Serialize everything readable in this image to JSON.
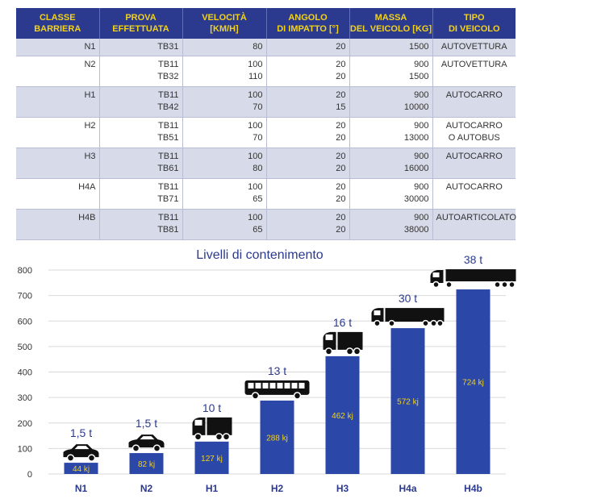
{
  "table": {
    "headers": [
      [
        "CLASSE",
        "BARRIERA"
      ],
      [
        "PROVA",
        "EFFETTUATA"
      ],
      [
        "VELOCITÀ",
        "[KM/H]"
      ],
      [
        "ANGOLO",
        "DI IMPATTO [°]"
      ],
      [
        "MASSA",
        "DEL VEICOLO [KG]"
      ],
      [
        "TIPO",
        "DI VEICOLO"
      ]
    ],
    "rows": [
      {
        "classe": "N1",
        "prove": [
          "TB31"
        ],
        "velocita": [
          "80"
        ],
        "angolo": [
          "20"
        ],
        "massa": [
          "1500"
        ],
        "tipo": [
          "AUTOVETTURA"
        ]
      },
      {
        "classe": "N2",
        "prove": [
          "TB11",
          "TB32"
        ],
        "velocita": [
          "100",
          "110"
        ],
        "angolo": [
          "20",
          "20"
        ],
        "massa": [
          "900",
          "1500"
        ],
        "tipo": [
          "AUTOVETTURA"
        ]
      },
      {
        "classe": "H1",
        "prove": [
          "TB11",
          "TB42"
        ],
        "velocita": [
          "100",
          "70"
        ],
        "angolo": [
          "20",
          "15"
        ],
        "massa": [
          "900",
          "10000"
        ],
        "tipo": [
          "AUTOCARRO"
        ]
      },
      {
        "classe": "H2",
        "prove": [
          "TB11",
          "TB51"
        ],
        "velocita": [
          "100",
          "70"
        ],
        "angolo": [
          "20",
          "20"
        ],
        "massa": [
          "900",
          "13000"
        ],
        "tipo": [
          "AUTOCARRO",
          "O AUTOBUS"
        ]
      },
      {
        "classe": "H3",
        "prove": [
          "TB11",
          "TB61"
        ],
        "velocita": [
          "100",
          "80"
        ],
        "angolo": [
          "20",
          "20"
        ],
        "massa": [
          "900",
          "16000"
        ],
        "tipo": [
          "AUTOCARRO"
        ]
      },
      {
        "classe": "H4A",
        "prove": [
          "TB11",
          "TB71"
        ],
        "velocita": [
          "100",
          "65"
        ],
        "angolo": [
          "20",
          "20"
        ],
        "massa": [
          "900",
          "30000"
        ],
        "tipo": [
          "AUTOCARRO"
        ]
      },
      {
        "classe": "H4B",
        "prove": [
          "TB11",
          "TB81"
        ],
        "velocita": [
          "100",
          "65"
        ],
        "angolo": [
          "20",
          "20"
        ],
        "massa": [
          "900",
          "38000"
        ],
        "tipo": [
          "AUTOARTICOLATO"
        ]
      }
    ]
  },
  "colors": {
    "header_bg": "#2b3a8f",
    "header_text": "#f2d21b",
    "row_shade": "#d7dbe9",
    "bar": "#2b47a8",
    "bar_label": "#f2d21b",
    "title": "#2b3a8f"
  },
  "chart_data": {
    "type": "bar",
    "title": "Livelli di contenimento",
    "xlabel": "",
    "ylabel": "",
    "ylim": [
      0,
      800
    ],
    "yticks": [
      0,
      100,
      200,
      300,
      400,
      500,
      600,
      700,
      800
    ],
    "grid": true,
    "categories": [
      "N1",
      "N2",
      "H1",
      "H2",
      "H3",
      "H4a",
      "H4b"
    ],
    "values": [
      44,
      82,
      127,
      288,
      462,
      572,
      724
    ],
    "value_labels": [
      "44 kj",
      "82 kj",
      "127 kj",
      "288 kj",
      "462 kj",
      "572 kj",
      "724 kj"
    ],
    "weight_labels": [
      "1,5 t",
      "1,5 t",
      "10 t",
      "13 t",
      "16 t",
      "30 t",
      "38 t"
    ],
    "vehicle_icons": [
      "car-icon",
      "car-icon",
      "truck-icon",
      "bus-icon",
      "truck-icon",
      "truck-trailer-icon",
      "semi-truck-icon"
    ]
  }
}
